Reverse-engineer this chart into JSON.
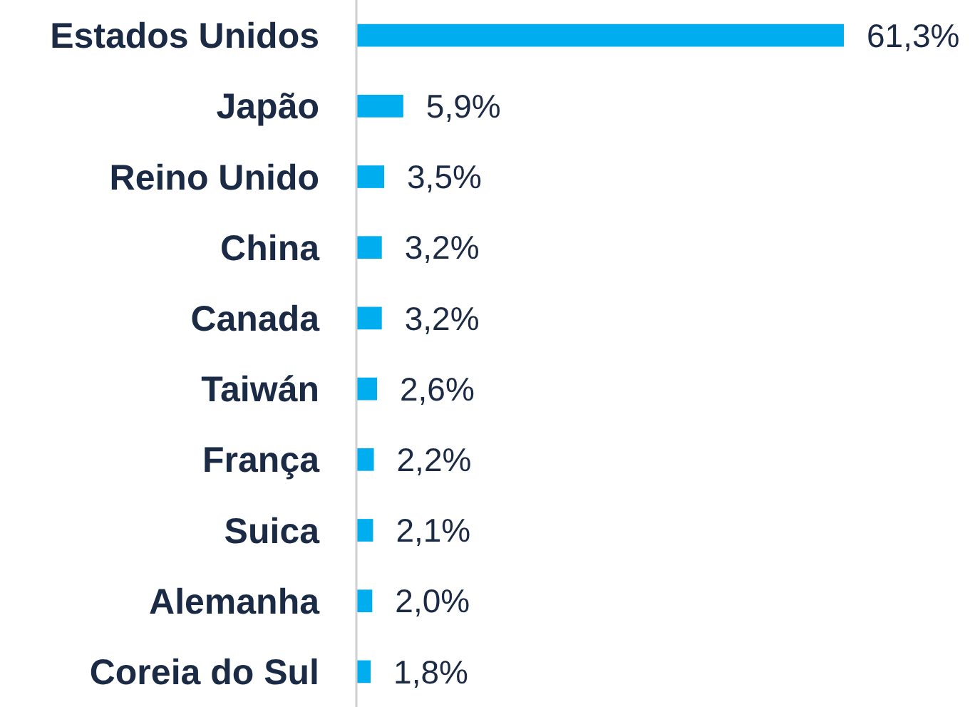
{
  "chart_data": {
    "type": "bar",
    "orientation": "horizontal",
    "categories": [
      "Estados Unidos",
      "Japão",
      "Reino Unido",
      "China",
      "Canada",
      "Taiwán",
      "França",
      "Suica",
      "Alemanha",
      "Coreia do Sul"
    ],
    "values": [
      61.3,
      5.9,
      3.5,
      3.2,
      3.2,
      2.6,
      2.2,
      2.1,
      2.0,
      1.8
    ],
    "value_labels": [
      "61,3%",
      "5,9%",
      "3,5%",
      "3,2%",
      "3,2%",
      "2,6%",
      "2,2%",
      "2,1%",
      "2,0%",
      "1,8%"
    ],
    "color": "#00aeef"
  }
}
